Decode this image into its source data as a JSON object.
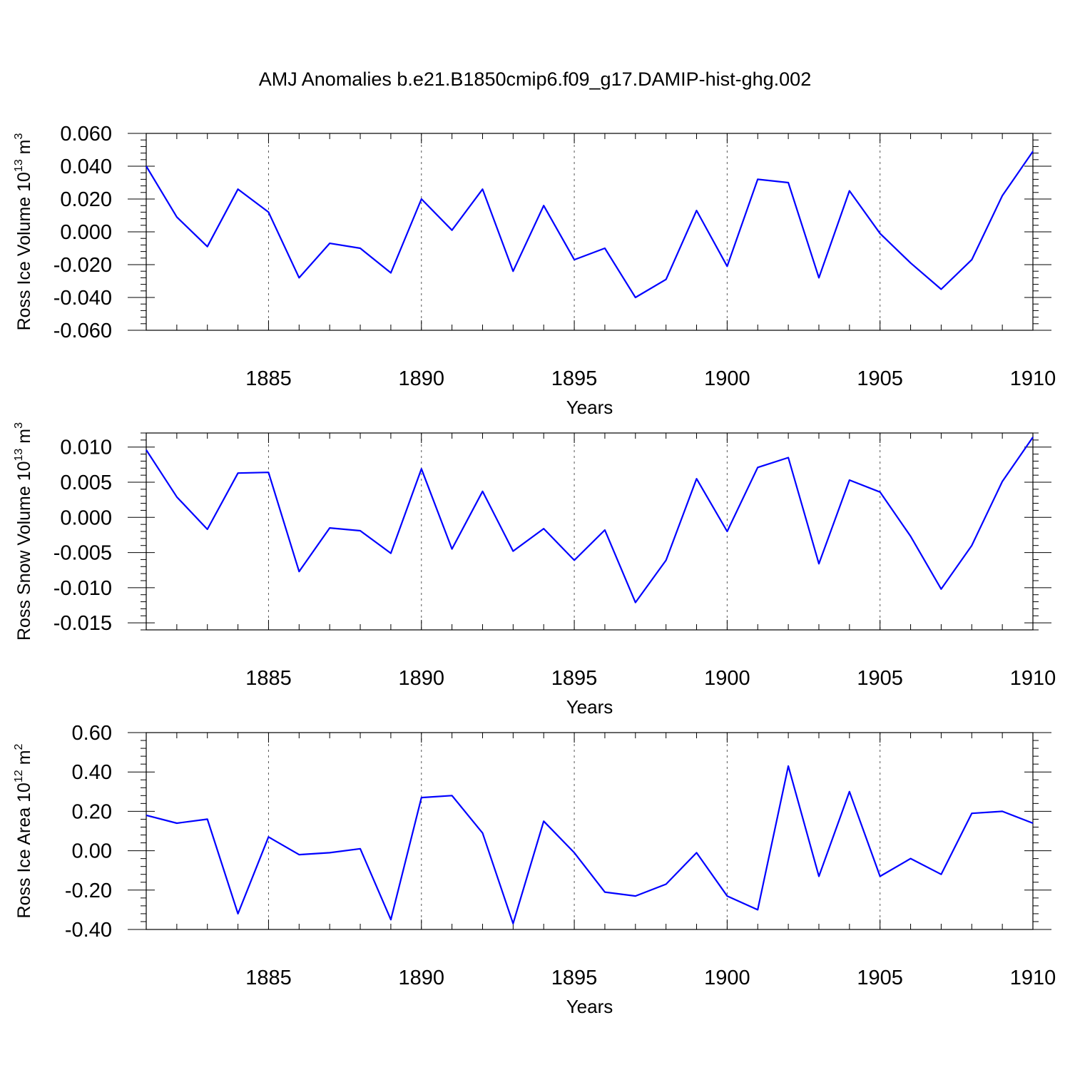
{
  "title": "AMJ Anomalies b.e21.B1850cmip6.f09_g17.DAMIP-hist-ghg.002",
  "chart_data": [
    {
      "type": "line",
      "ylabel": "Ross Ice Volume 10",
      "ylabel_sup": "13",
      "ylabel_unit": "m",
      "ylabel_unit_sup": "3",
      "xlabel": "Years",
      "xlim": [
        1881,
        1910
      ],
      "ylim": [
        -0.06,
        0.06
      ],
      "yticks": [
        -0.06,
        -0.04,
        -0.02,
        0.0,
        0.02,
        0.04,
        0.06
      ],
      "ytick_labels": [
        "-0.060",
        "-0.040",
        "-0.020",
        "0.000",
        "0.020",
        "0.040",
        "0.060"
      ],
      "xticks": [
        1885,
        1890,
        1895,
        1900,
        1905,
        1910
      ],
      "xtick_labels": [
        "1885",
        "1890",
        "1895",
        "1900",
        "1905",
        "1910"
      ],
      "x": [
        1881,
        1882,
        1883,
        1884,
        1885,
        1886,
        1887,
        1888,
        1889,
        1890,
        1891,
        1892,
        1893,
        1894,
        1895,
        1896,
        1897,
        1898,
        1899,
        1900,
        1901,
        1902,
        1903,
        1904,
        1905,
        1906,
        1907,
        1908,
        1909,
        1910
      ],
      "series": [
        {
          "color": "#0000ff",
          "values": [
            0.04,
            0.009,
            -0.009,
            0.026,
            0.012,
            -0.028,
            -0.007,
            -0.01,
            -0.025,
            0.02,
            0.001,
            0.026,
            -0.024,
            0.016,
            -0.017,
            -0.01,
            -0.04,
            -0.029,
            0.013,
            -0.021,
            0.032,
            0.03,
            -0.028,
            0.025,
            -0.001,
            -0.019,
            -0.035,
            -0.017,
            0.022,
            0.049
          ]
        }
      ]
    },
    {
      "type": "line",
      "ylabel": "Ross Snow Volume 10",
      "ylabel_sup": "13",
      "ylabel_unit": "m",
      "ylabel_unit_sup": "3",
      "xlabel": "Years",
      "xlim": [
        1881,
        1910
      ],
      "ylim": [
        -0.016,
        0.012
      ],
      "yticks": [
        -0.015,
        -0.01,
        -0.005,
        0.0,
        0.005,
        0.01
      ],
      "ytick_labels": [
        "-0.015",
        "-0.010",
        "-0.005",
        "0.000",
        "0.005",
        "0.010"
      ],
      "xticks": [
        1885,
        1890,
        1895,
        1900,
        1905,
        1910
      ],
      "xtick_labels": [
        "1885",
        "1890",
        "1895",
        "1900",
        "1905",
        "1910"
      ],
      "x": [
        1881,
        1882,
        1883,
        1884,
        1885,
        1886,
        1887,
        1888,
        1889,
        1890,
        1891,
        1892,
        1893,
        1894,
        1895,
        1896,
        1897,
        1898,
        1899,
        1900,
        1901,
        1902,
        1903,
        1904,
        1905,
        1906,
        1907,
        1908,
        1909,
        1910
      ],
      "series": [
        {
          "color": "#0000ff",
          "values": [
            0.0096,
            0.0029,
            -0.0017,
            0.0063,
            0.0064,
            -0.0077,
            -0.0015,
            -0.0019,
            -0.0051,
            0.0069,
            -0.0045,
            0.0037,
            -0.0048,
            -0.0016,
            -0.0061,
            -0.0018,
            -0.0121,
            -0.0061,
            0.0055,
            -0.002,
            0.0071,
            0.0085,
            -0.0066,
            0.0053,
            0.0036,
            -0.0027,
            -0.0102,
            -0.004,
            0.0051,
            0.0114
          ]
        }
      ]
    },
    {
      "type": "line",
      "ylabel": "Ross Ice Area 10",
      "ylabel_sup": "12",
      "ylabel_unit": "m",
      "ylabel_unit_sup": "2",
      "xlabel": "Years",
      "xlim": [
        1881,
        1910
      ],
      "ylim": [
        -0.4,
        0.6
      ],
      "yticks": [
        -0.4,
        -0.2,
        0.0,
        0.2,
        0.4,
        0.6
      ],
      "ytick_labels": [
        "-0.40",
        "-0.20",
        "0.00",
        "0.20",
        "0.40",
        "0.60"
      ],
      "xticks": [
        1885,
        1890,
        1895,
        1900,
        1905,
        1910
      ],
      "xtick_labels": [
        "1885",
        "1890",
        "1895",
        "1900",
        "1905",
        "1910"
      ],
      "x": [
        1881,
        1882,
        1883,
        1884,
        1885,
        1886,
        1887,
        1888,
        1889,
        1890,
        1891,
        1892,
        1893,
        1894,
        1895,
        1896,
        1897,
        1898,
        1899,
        1900,
        1901,
        1902,
        1903,
        1904,
        1905,
        1906,
        1907,
        1908,
        1909,
        1910
      ],
      "series": [
        {
          "color": "#0000ff",
          "values": [
            0.18,
            0.14,
            0.16,
            -0.32,
            0.07,
            -0.02,
            -0.01,
            0.01,
            -0.35,
            0.27,
            0.28,
            0.09,
            -0.37,
            0.15,
            -0.01,
            -0.21,
            -0.23,
            -0.17,
            -0.01,
            -0.23,
            -0.3,
            0.43,
            -0.13,
            0.3,
            -0.13,
            -0.04,
            -0.12,
            0.19,
            0.2,
            0.14
          ]
        }
      ]
    }
  ]
}
